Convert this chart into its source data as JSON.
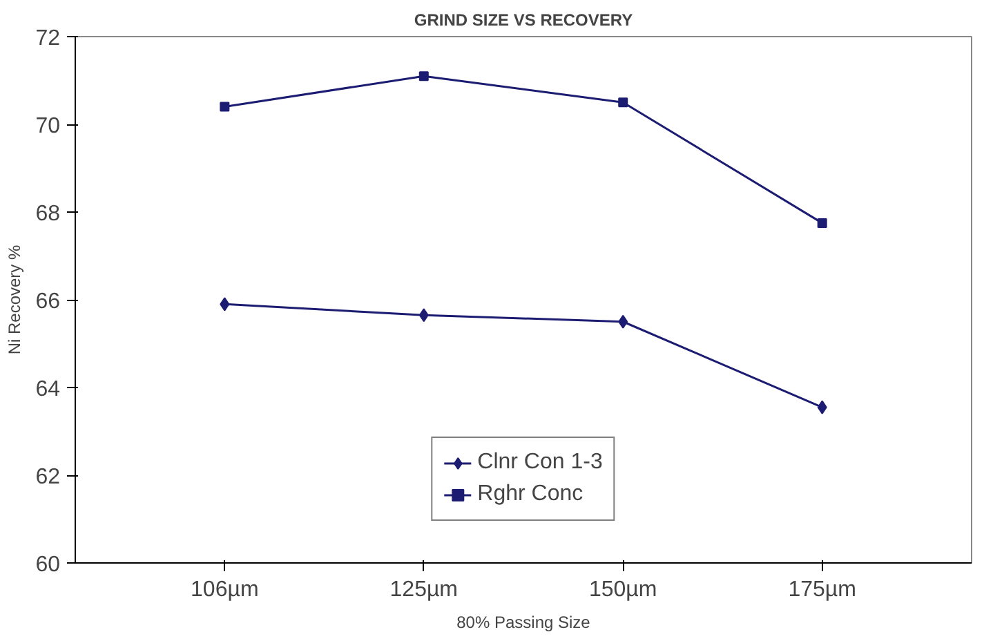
{
  "chart_data": {
    "type": "line",
    "title": "GRIND SIZE VS RECOVERY",
    "xlabel": "80% Passing Size",
    "ylabel": "Ni Recovery %",
    "categories": [
      "106µm",
      "125µm",
      "150µm",
      "175µm"
    ],
    "series": [
      {
        "name": "Clnr Con 1-3",
        "color": "#1c1c72",
        "marker": "diamond",
        "values": [
          65.9,
          65.65,
          65.5,
          63.55
        ]
      },
      {
        "name": "Rghr Conc",
        "color": "#1c1c72",
        "marker": "square",
        "values": [
          70.4,
          71.1,
          70.5,
          67.75
        ]
      }
    ],
    "ylim": [
      60,
      72
    ],
    "yticks": [
      60,
      62,
      64,
      66,
      68,
      70,
      72
    ],
    "grid": false,
    "legend": "bottom",
    "line_style": "solid"
  }
}
